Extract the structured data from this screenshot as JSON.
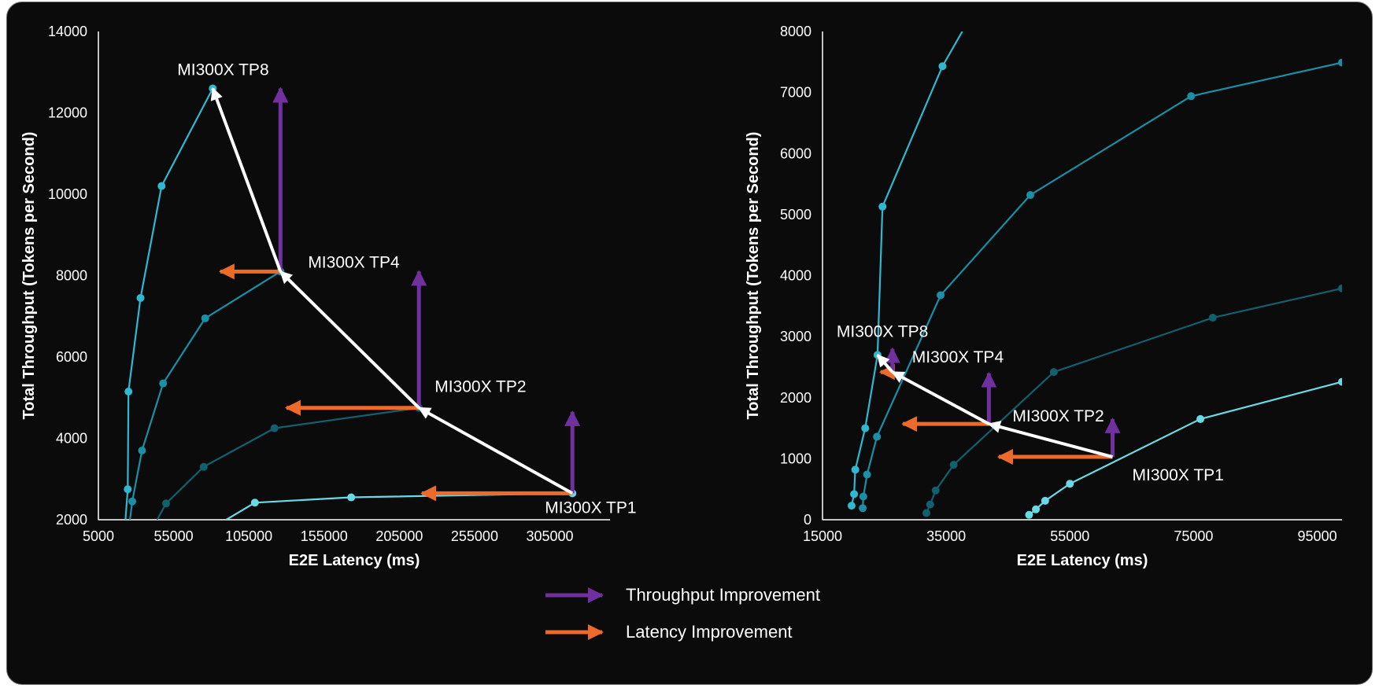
{
  "colors": {
    "background": "#0b0b0b",
    "axis": "#ffffff",
    "throughput_arrow": "#7030a0",
    "latency_arrow": "#ed6a2a",
    "transition_arrow": "#ffffff",
    "series": [
      "#31b8d0",
      "#1a8fa6",
      "#12606f",
      "#6ad9e6"
    ]
  },
  "chart_data": [
    {
      "type": "line",
      "xlabel": "E2E Latency (ms)",
      "ylabel": "Total Throughput (Tokens per Second)",
      "xlim": [
        5000,
        345000
      ],
      "ylim": [
        2000,
        14000
      ],
      "x_ticks": [
        5000,
        55000,
        105000,
        155000,
        205000,
        255000,
        305000
      ],
      "y_ticks": [
        2000,
        4000,
        6000,
        8000,
        10000,
        12000,
        14000
      ],
      "series": [
        {
          "points": [
            [
              23000,
              2000
            ],
            [
              24500,
              2750
            ],
            [
              25000,
              5150
            ],
            [
              33000,
              7450
            ],
            [
              47000,
              10200
            ],
            [
              81000,
              12600
            ]
          ]
        },
        {
          "points": [
            [
              26000,
              2000
            ],
            [
              27500,
              2450
            ],
            [
              34000,
              3700
            ],
            [
              48000,
              5350
            ],
            [
              76000,
              6950
            ],
            [
              126000,
              8100
            ]
          ]
        },
        {
          "points": [
            [
              44000,
              2000
            ],
            [
              50000,
              2400
            ],
            [
              75000,
              3300
            ],
            [
              122000,
              4250
            ],
            [
              218000,
              4750
            ]
          ]
        },
        {
          "points": [
            [
              90000,
              2000
            ],
            [
              109000,
              2420
            ],
            [
              173000,
              2550
            ],
            [
              320000,
              2650
            ]
          ]
        }
      ],
      "annotations": [
        {
          "text": "MI300X TP8",
          "x": 81000,
          "y": 12600
        },
        {
          "text": "MI300X TP4",
          "x": 126000,
          "y": 8100
        },
        {
          "text": "MI300X TP2",
          "x": 218000,
          "y": 4750
        },
        {
          "text": "MI300X TP1",
          "x": 320000,
          "y": 2650
        }
      ],
      "throughput_arrows": [
        {
          "x": 126000,
          "from": 8100,
          "to": 12600
        },
        {
          "x": 218000,
          "from": 4750,
          "to": 8100
        },
        {
          "x": 320000,
          "from": 2650,
          "to": 4650
        }
      ],
      "latency_arrows": [
        {
          "y": 8100,
          "from": 126000,
          "to": 86000
        },
        {
          "y": 4750,
          "from": 218000,
          "to": 130000
        },
        {
          "y": 2650,
          "from": 320000,
          "to": 220000
        }
      ],
      "transitions": [
        [
          320000,
          2650,
          218000,
          4750
        ],
        [
          218000,
          4750,
          126000,
          8100
        ],
        [
          126000,
          8100,
          81000,
          12600
        ]
      ]
    },
    {
      "type": "line",
      "xlabel": "E2E Latency (ms)",
      "ylabel": "Total Throughput (Tokens per Second)",
      "xlim": [
        15000,
        99000
      ],
      "ylim": [
        0,
        8000
      ],
      "x_ticks": [
        15000,
        35000,
        55000,
        75000,
        95000
      ],
      "y_ticks": [
        0,
        1000,
        2000,
        3000,
        4000,
        5000,
        6000,
        7000,
        8000
      ],
      "series": [
        {
          "points": [
            [
              19700,
              230
            ],
            [
              20100,
              420
            ],
            [
              20300,
              820
            ],
            [
              21900,
              1500
            ],
            [
              23900,
              2700
            ],
            [
              24700,
              5130
            ],
            [
              34400,
              7430
            ],
            [
              37600,
              8000
            ]
          ]
        },
        {
          "points": [
            [
              21500,
              190
            ],
            [
              21600,
              380
            ],
            [
              22200,
              740
            ],
            [
              23800,
              1360
            ],
            [
              34100,
              3680
            ],
            [
              48600,
              5320
            ],
            [
              74600,
              6940
            ],
            [
              99000,
              7490
            ]
          ]
        },
        {
          "points": [
            [
              31800,
              110
            ],
            [
              32400,
              250
            ],
            [
              33300,
              480
            ],
            [
              36200,
              900
            ],
            [
              52400,
              2420
            ],
            [
              78100,
              3310
            ],
            [
              99000,
              3790
            ]
          ]
        },
        {
          "points": [
            [
              48400,
              80
            ],
            [
              49500,
              170
            ],
            [
              51000,
              310
            ],
            [
              55000,
              590
            ],
            [
              76100,
              1650
            ],
            [
              99000,
              2260
            ]
          ]
        }
      ],
      "annotations": [
        {
          "text": "MI300X TP8",
          "x": 23900,
          "y": 2700
        },
        {
          "text": "MI300X TP4",
          "x": 26300,
          "y": 2420
        },
        {
          "text": "MI300X TP2",
          "x": 41900,
          "y": 1570
        },
        {
          "text": "MI300X TP1",
          "x": 61900,
          "y": 1030
        }
      ],
      "throughput_arrows": [
        {
          "x": 26300,
          "from": 2420,
          "to": 2800
        },
        {
          "x": 41900,
          "from": 1570,
          "to": 2400
        },
        {
          "x": 61900,
          "from": 1030,
          "to": 1650
        }
      ],
      "latency_arrows": [
        {
          "y": 2420,
          "from": 26300,
          "to": 24400
        },
        {
          "y": 1570,
          "from": 41900,
          "to": 28000
        },
        {
          "y": 1030,
          "from": 61900,
          "to": 43500
        }
      ],
      "transitions": [
        [
          61900,
          1030,
          41900,
          1570
        ],
        [
          41900,
          1570,
          26300,
          2420
        ],
        [
          26300,
          2420,
          23900,
          2700
        ]
      ]
    }
  ],
  "legend": [
    {
      "label": "Throughput  Improvement",
      "kind": "throughput"
    },
    {
      "label": "Latency Improvement",
      "kind": "latency"
    }
  ]
}
